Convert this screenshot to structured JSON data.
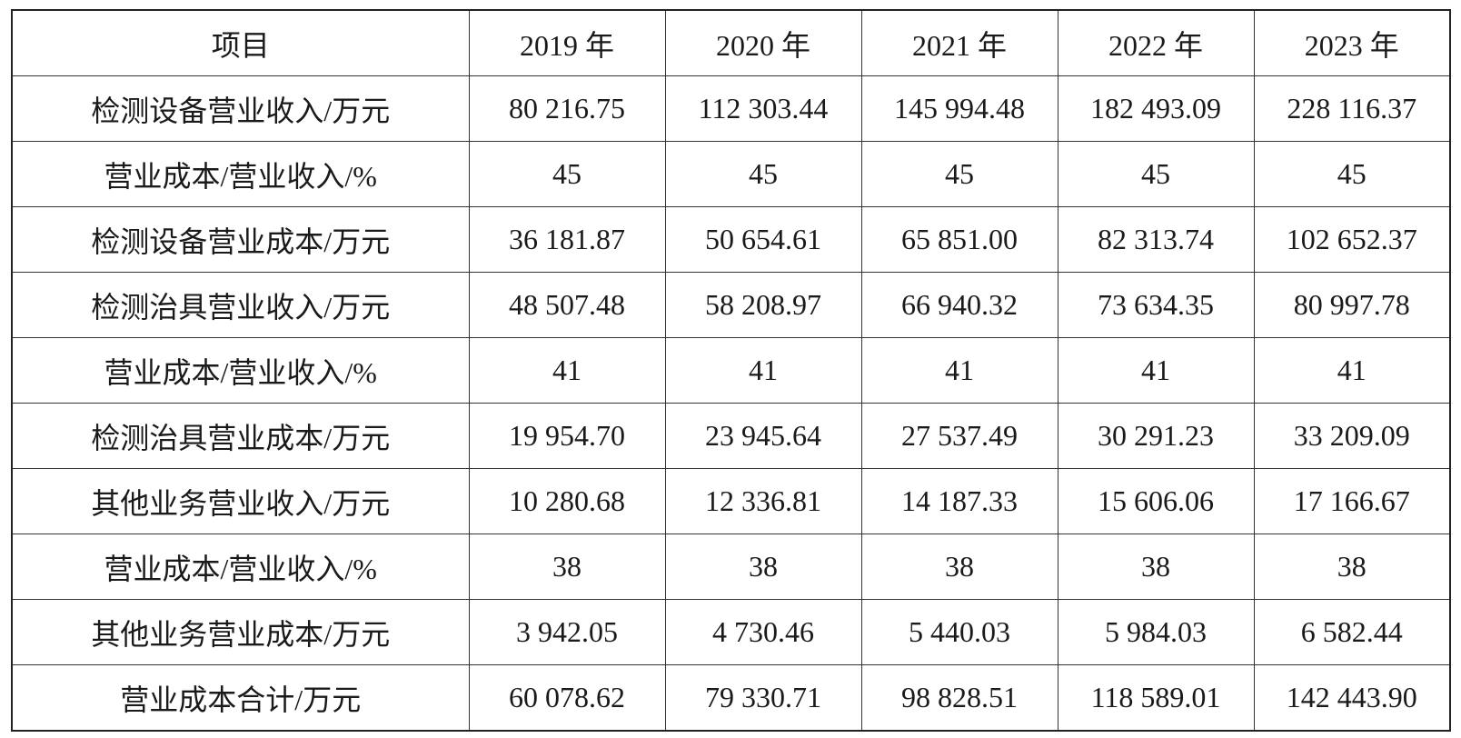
{
  "table": {
    "header": [
      "项目",
      "2019 年",
      "2020 年",
      "2021 年",
      "2022 年",
      "2023 年"
    ],
    "rows": [
      [
        "检测设备营业收入/万元",
        "80 216.75",
        "112 303.44",
        "145 994.48",
        "182 493.09",
        "228 116.37"
      ],
      [
        "营业成本/营业收入/%",
        "45",
        "45",
        "45",
        "45",
        "45"
      ],
      [
        "检测设备营业成本/万元",
        "36 181.87",
        "50 654.61",
        "65 851.00",
        "82 313.74",
        "102 652.37"
      ],
      [
        "检测治具营业收入/万元",
        "48 507.48",
        "58 208.97",
        "66 940.32",
        "73 634.35",
        "80 997.78"
      ],
      [
        "营业成本/营业收入/%",
        "41",
        "41",
        "41",
        "41",
        "41"
      ],
      [
        "检测治具营业成本/万元",
        "19 954.70",
        "23 945.64",
        "27 537.49",
        "30 291.23",
        "33 209.09"
      ],
      [
        "其他业务营业收入/万元",
        "10 280.68",
        "12 336.81",
        "14 187.33",
        "15 606.06",
        "17 166.67"
      ],
      [
        "营业成本/营业收入/%",
        "38",
        "38",
        "38",
        "38",
        "38"
      ],
      [
        "其他业务营业成本/万元",
        "3 942.05",
        "4 730.46",
        "5 440.03",
        "5 984.03",
        "6 582.44"
      ],
      [
        "营业成本合计/万元",
        "60 078.62",
        "79 330.71",
        "98 828.51",
        "118 589.01",
        "142 443.90"
      ]
    ]
  }
}
